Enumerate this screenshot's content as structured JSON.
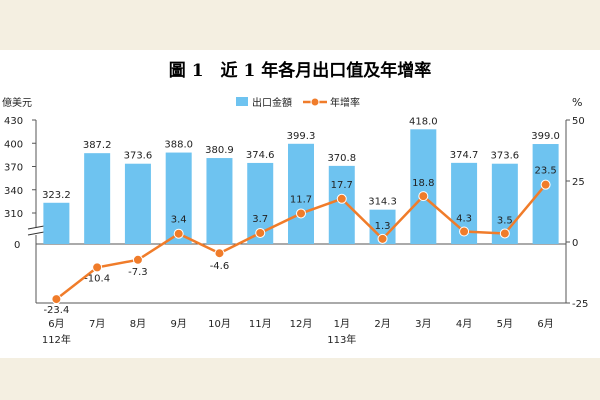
{
  "chart_data": {
    "type": "bar",
    "title": "圖 1　近 1 年各月出口值及年增率",
    "left_unit": "億美元",
    "right_unit": "%",
    "categories": [
      "6月",
      "7月",
      "8月",
      "9月",
      "10月",
      "11月",
      "12月",
      "1月",
      "2月",
      "3月",
      "4月",
      "5月",
      "6月"
    ],
    "year_labels": [
      {
        "index": 0,
        "label": "112年"
      },
      {
        "index": 7,
        "label": "113年"
      }
    ],
    "series": [
      {
        "name": "出口金額",
        "type": "bar",
        "axis": "left",
        "color": "#6ec3f0",
        "values": [
          323.2,
          387.2,
          373.6,
          388.0,
          380.9,
          374.6,
          399.3,
          370.8,
          314.3,
          418.0,
          374.7,
          373.6,
          399.0
        ],
        "labels": [
          "323.2",
          "387.2",
          "373.6",
          "388.0",
          "380.9",
          "374.6",
          "399.3",
          "370.8",
          "314.3",
          "418.0",
          "374.7",
          "373.6",
          "399.0"
        ]
      },
      {
        "name": "年增率",
        "type": "line",
        "axis": "right",
        "color": "#f07c2a",
        "values": [
          -23.4,
          -10.4,
          -7.3,
          3.4,
          -4.6,
          3.7,
          11.7,
          17.7,
          1.3,
          18.8,
          4.3,
          3.5,
          23.5
        ],
        "labels": [
          "-23.4",
          "-10.4",
          "-7.3",
          "3.4",
          "-4.6",
          "3.7",
          "11.7",
          "17.7",
          "1.3",
          "18.8",
          "4.3",
          "3.5",
          "23.5"
        ]
      }
    ],
    "left_axis": {
      "ticks": [
        {
          "value": 310,
          "label": "310"
        },
        {
          "value": 340,
          "label": "340"
        },
        {
          "value": 370,
          "label": "370"
        },
        {
          "value": 400,
          "label": "400"
        },
        {
          "value": 430,
          "label": "430"
        }
      ],
      "zero_label": "0",
      "break_range": [
        0,
        280
      ],
      "ylim": [
        280,
        430
      ]
    },
    "right_axis": {
      "ticks": [
        {
          "value": -25,
          "label": "-25"
        },
        {
          "value": 0,
          "label": "0"
        },
        {
          "value": 25,
          "label": "25"
        },
        {
          "value": 50,
          "label": "50"
        }
      ],
      "ylim": [
        -25,
        50
      ]
    },
    "grid": false,
    "legend_position": "top-right"
  }
}
